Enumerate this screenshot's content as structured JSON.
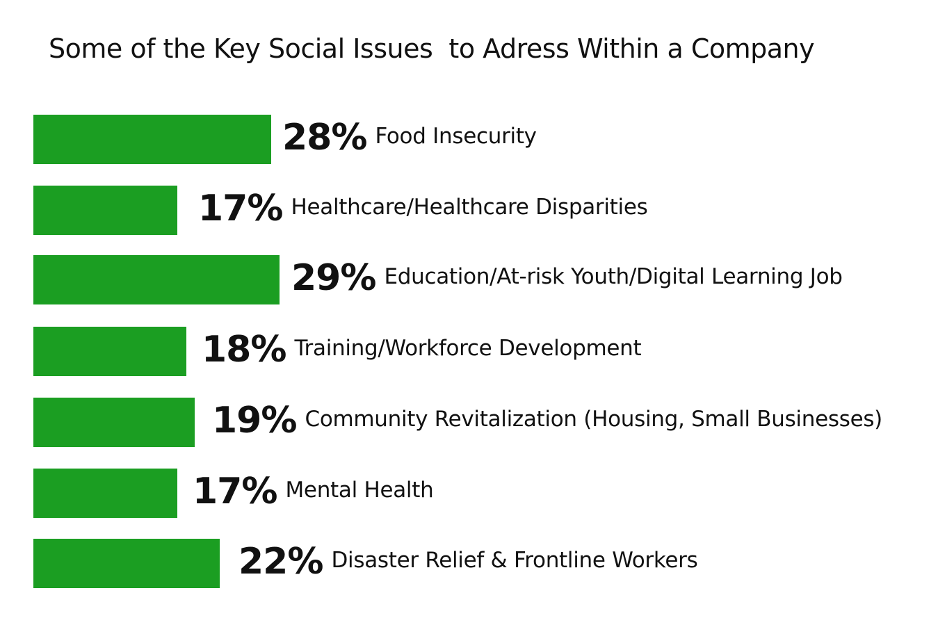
{
  "chart_data": {
    "type": "bar",
    "orientation": "horizontal",
    "title": "Some of the Key Social Issues  to Adress Within a Company",
    "bar_color": "#1b9e22",
    "categories": [
      "Food Insecurity",
      "Healthcare/Healthcare Disparities",
      "Education/At-risk Youth/Digital Learning Job",
      "Training/Workforce Development",
      "Community Revitalization (Housing, Small Businesses)",
      "Mental Health",
      "Disaster Relief & Frontline Workers"
    ],
    "values": [
      28,
      17,
      29,
      18,
      19,
      17,
      22
    ],
    "value_labels": [
      "28%",
      "17%",
      "29%",
      "18%",
      "19%",
      "17%",
      "22%"
    ],
    "unit": "%",
    "grid": false,
    "legend": "none"
  }
}
